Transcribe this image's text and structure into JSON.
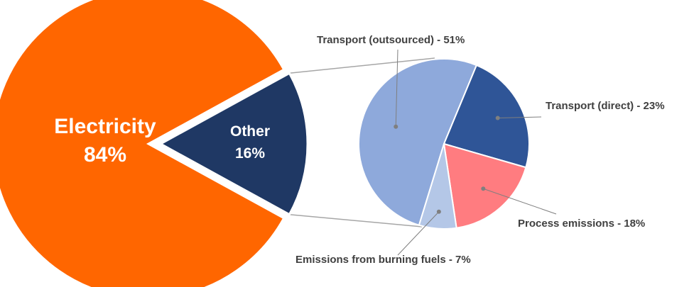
{
  "chart_data": [
    {
      "type": "pie",
      "slices": [
        {
          "name": "Electricity",
          "value": 84,
          "label_line1": "Electricity",
          "label_line2": "84%",
          "color": "#FF6600"
        },
        {
          "name": "Other",
          "value": 16,
          "label_line1": "Other",
          "label_line2": "16%",
          "color": "#1F3864"
        }
      ]
    },
    {
      "type": "pie",
      "slices": [
        {
          "name": "Transport (outsourced)",
          "value": 51,
          "label": "Transport (outsourced) - 51%",
          "color": "#8EA9DB"
        },
        {
          "name": "Transport (direct)",
          "value": 23,
          "label": "Transport (direct) - 23%",
          "color": "#2F5597"
        },
        {
          "name": "Process emissions",
          "value": 18,
          "label": "Process emissions - 18%",
          "color": "#FF7C80"
        },
        {
          "name": "Emissions from burning fuels",
          "value": 7,
          "label": "Emissions from burning fuels - 7%",
          "color": "#B4C7E7"
        }
      ]
    }
  ],
  "colors": {
    "connector": "#A6A6A6",
    "leader": "#7F7F7F",
    "separator": "#FFFFFF"
  }
}
